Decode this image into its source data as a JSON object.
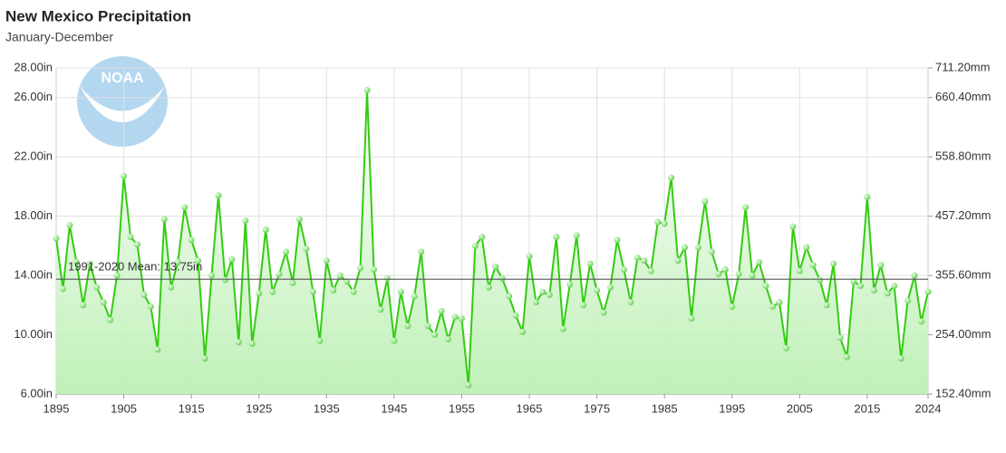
{
  "chart_data": {
    "type": "line",
    "title": "New Mexico Precipitation",
    "subtitle": "January-December",
    "logo_text": "NOAA",
    "x": [
      1895,
      1896,
      1897,
      1898,
      1899,
      1900,
      1901,
      1902,
      1903,
      1904,
      1905,
      1906,
      1907,
      1908,
      1909,
      1910,
      1911,
      1912,
      1913,
      1914,
      1915,
      1916,
      1917,
      1918,
      1919,
      1920,
      1921,
      1922,
      1923,
      1924,
      1925,
      1926,
      1927,
      1928,
      1929,
      1930,
      1931,
      1932,
      1933,
      1934,
      1935,
      1936,
      1937,
      1938,
      1939,
      1940,
      1941,
      1942,
      1943,
      1944,
      1945,
      1946,
      1947,
      1948,
      1949,
      1950,
      1951,
      1952,
      1953,
      1954,
      1955,
      1956,
      1957,
      1958,
      1959,
      1960,
      1961,
      1962,
      1963,
      1964,
      1965,
      1966,
      1967,
      1968,
      1969,
      1970,
      1971,
      1972,
      1973,
      1974,
      1975,
      1976,
      1977,
      1978,
      1979,
      1980,
      1981,
      1982,
      1983,
      1984,
      1985,
      1986,
      1987,
      1988,
      1989,
      1990,
      1991,
      1992,
      1993,
      1994,
      1995,
      1996,
      1997,
      1998,
      1999,
      2000,
      2001,
      2002,
      2003,
      2004,
      2005,
      2006,
      2007,
      2008,
      2009,
      2010,
      2011,
      2012,
      2013,
      2014,
      2015,
      2016,
      2017,
      2018,
      2019,
      2020,
      2021,
      2022,
      2023,
      2024
    ],
    "series": [
      {
        "name": "Precipitation",
        "color": "#33cc11",
        "values": [
          16.5,
          13.1,
          17.4,
          14.9,
          12.0,
          14.8,
          13.2,
          12.2,
          11.0,
          14.0,
          20.7,
          16.6,
          16.1,
          12.7,
          11.9,
          9.0,
          17.8,
          13.2,
          14.9,
          18.6,
          16.4,
          15.0,
          8.4,
          14.0,
          19.4,
          13.7,
          15.1,
          9.5,
          17.7,
          9.4,
          12.8,
          17.1,
          12.9,
          14.1,
          15.6,
          13.5,
          17.8,
          15.8,
          12.9,
          9.6,
          15.0,
          13.0,
          14.0,
          13.6,
          12.9,
          14.5,
          26.5,
          14.4,
          11.7,
          13.8,
          9.6,
          12.9,
          10.6,
          12.6,
          15.6,
          10.6,
          10.0,
          11.6,
          9.7,
          11.2,
          11.1,
          6.6,
          16.0,
          16.6,
          13.2,
          14.6,
          13.8,
          12.6,
          11.3,
          10.2,
          15.3,
          12.2,
          12.9,
          12.7,
          16.6,
          10.4,
          13.4,
          16.7,
          12.0,
          14.8,
          13.0,
          11.5,
          13.2,
          16.4,
          14.4,
          12.2,
          15.2,
          15.0,
          14.3,
          17.6,
          17.5,
          20.6,
          15.0,
          15.9,
          11.1,
          15.9,
          19.0,
          15.6,
          14.1,
          14.4,
          11.9,
          14.1,
          18.6,
          14.0,
          14.9,
          13.3,
          11.9,
          12.2,
          9.1,
          17.3,
          14.3,
          15.9,
          14.7,
          13.7,
          12.0,
          14.8,
          9.8,
          8.5,
          13.6,
          13.3,
          19.3,
          13.0,
          14.7,
          12.8,
          13.3,
          8.4,
          12.3,
          14.0,
          10.9,
          12.9
        ]
      }
    ],
    "mean": {
      "value": 13.75,
      "label": "1991-2020 Mean: 13.75in"
    },
    "xlim": [
      1895,
      2024
    ],
    "xticks": [
      1895,
      1905,
      1915,
      1925,
      1935,
      1945,
      1955,
      1965,
      1975,
      1985,
      1995,
      2005,
      2015,
      2024
    ],
    "ylim": [
      6,
      28
    ],
    "yticks": [
      {
        "value": 6,
        "label": "6.00in"
      },
      {
        "value": 10,
        "label": "10.00in"
      },
      {
        "value": 14,
        "label": "14.00in"
      },
      {
        "value": 18,
        "label": "18.00in"
      },
      {
        "value": 22,
        "label": "22.00in"
      },
      {
        "value": 26,
        "label": "26.00in"
      },
      {
        "value": 28,
        "label": "28.00in"
      }
    ],
    "y2lim": [
      152.4,
      711.2
    ],
    "y2ticks": [
      {
        "value": 152.4,
        "label": "152.40mm"
      },
      {
        "value": 254,
        "label": "254.00mm"
      },
      {
        "value": 355.6,
        "label": "355.60mm"
      },
      {
        "value": 457.2,
        "label": "457.20mm"
      },
      {
        "value": 558.8,
        "label": "558.80mm"
      },
      {
        "value": 660.4,
        "label": "660.40mm"
      },
      {
        "value": 711.2,
        "label": "711.20mm"
      }
    ],
    "grid": true
  }
}
